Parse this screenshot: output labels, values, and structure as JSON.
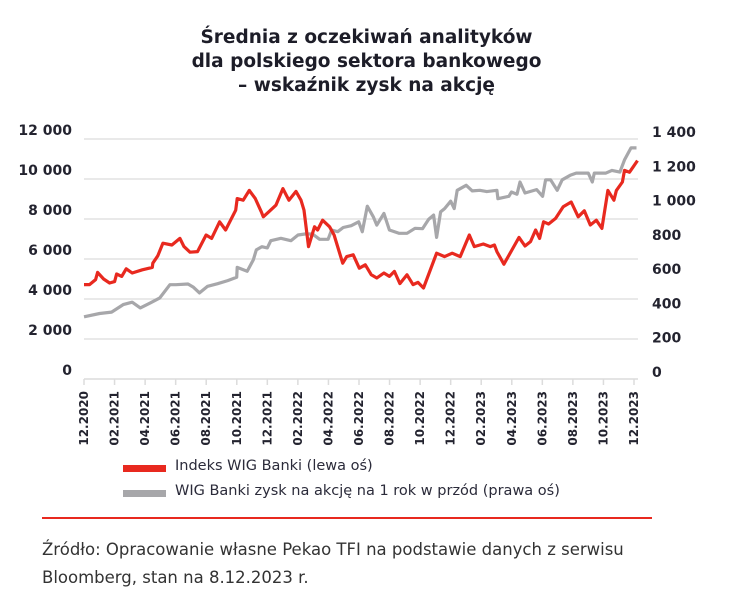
{
  "chart_data": {
    "type": "line",
    "title_lines": [
      "Średnia z oczekiwań analityków",
      "dla polskiego sektora bankowego",
      "– wskaźnik zysk na akcję"
    ],
    "x_tick_labels": [
      "12.2020",
      "02.2021",
      "04.2021",
      "06.2021",
      "08.2021",
      "10.2021",
      "12.2021",
      "02.2022",
      "04.2022",
      "06.2022",
      "08.2022",
      "10.2022",
      "12.2022",
      "02.2023",
      "04.2023",
      "06.2023",
      "08.2023",
      "10.2023",
      "12.2023"
    ],
    "x_range": [
      "2020-12-01",
      "2023-12-01"
    ],
    "y_left": {
      "range": [
        0,
        12000
      ],
      "ticks": [
        0,
        2000,
        4000,
        6000,
        8000,
        10000,
        12000
      ],
      "tick_labels": [
        "0",
        "2 000",
        "4 000",
        "6 000",
        "8 000",
        "10 000",
        "12 000"
      ]
    },
    "y_right": {
      "range": [
        0,
        1400
      ],
      "ticks": [
        0,
        200,
        400,
        600,
        800,
        1000,
        1200,
        1400
      ],
      "tick_labels": [
        "0",
        "200",
        "400",
        "600",
        "800",
        "1 000",
        "1 200",
        "1 400"
      ]
    },
    "grid": "horizontal",
    "legend_placement": "bottom-left",
    "series": [
      {
        "name": "Indeks WIG Banki (lewa oś)",
        "axis": "left",
        "color": "#e8291f",
        "points": [
          [
            "2020-12-01",
            4720
          ],
          [
            "2020-12-12",
            4720
          ],
          [
            "2020-12-24",
            4970
          ],
          [
            "2020-12-28",
            5330
          ],
          [
            "2021-01-09",
            5000
          ],
          [
            "2021-01-21",
            4800
          ],
          [
            "2021-01-31",
            4870
          ],
          [
            "2021-02-04",
            5250
          ],
          [
            "2021-02-14",
            5130
          ],
          [
            "2021-02-23",
            5510
          ],
          [
            "2021-03-07",
            5300
          ],
          [
            "2021-03-27",
            5460
          ],
          [
            "2021-04-16",
            5580
          ],
          [
            "2021-04-17",
            5790
          ],
          [
            "2021-04-27",
            6160
          ],
          [
            "2021-05-07",
            6790
          ],
          [
            "2021-05-25",
            6700
          ],
          [
            "2021-06-10",
            7030
          ],
          [
            "2021-06-18",
            6620
          ],
          [
            "2021-06-30",
            6340
          ],
          [
            "2021-07-15",
            6370
          ],
          [
            "2021-08-01",
            7200
          ],
          [
            "2021-08-12",
            7030
          ],
          [
            "2021-08-28",
            7860
          ],
          [
            "2021-09-09",
            7450
          ],
          [
            "2021-09-29",
            8440
          ],
          [
            "2021-10-02",
            9020
          ],
          [
            "2021-10-14",
            8940
          ],
          [
            "2021-10-26",
            9430
          ],
          [
            "2021-11-07",
            9020
          ],
          [
            "2021-11-19",
            8360
          ],
          [
            "2021-11-23",
            8110
          ],
          [
            "2021-12-04",
            8360
          ],
          [
            "2021-12-18",
            8690
          ],
          [
            "2022-01-01",
            9520
          ],
          [
            "2022-01-13",
            8940
          ],
          [
            "2022-01-27",
            9380
          ],
          [
            "2022-02-06",
            8940
          ],
          [
            "2022-02-12",
            8440
          ],
          [
            "2022-02-21",
            6620
          ],
          [
            "2022-03-05",
            7610
          ],
          [
            "2022-03-11",
            7450
          ],
          [
            "2022-03-21",
            7940
          ],
          [
            "2022-04-04",
            7610
          ],
          [
            "2022-04-13",
            7200
          ],
          [
            "2022-04-30",
            5790
          ],
          [
            "2022-05-08",
            6120
          ],
          [
            "2022-05-21",
            6210
          ],
          [
            "2022-06-02",
            5540
          ],
          [
            "2022-06-14",
            5710
          ],
          [
            "2022-06-26",
            5210
          ],
          [
            "2022-07-07",
            5050
          ],
          [
            "2022-07-21",
            5300
          ],
          [
            "2022-08-01",
            5130
          ],
          [
            "2022-08-11",
            5380
          ],
          [
            "2022-08-22",
            4770
          ],
          [
            "2022-09-05",
            5210
          ],
          [
            "2022-09-17",
            4720
          ],
          [
            "2022-09-27",
            4830
          ],
          [
            "2022-10-08",
            4550
          ],
          [
            "2022-11-03",
            6290
          ],
          [
            "2022-11-19",
            6120
          ],
          [
            "2022-12-04",
            6290
          ],
          [
            "2022-12-20",
            6120
          ],
          [
            "2023-01-07",
            7200
          ],
          [
            "2023-01-17",
            6620
          ],
          [
            "2023-02-04",
            6750
          ],
          [
            "2023-02-18",
            6620
          ],
          [
            "2023-02-26",
            6700
          ],
          [
            "2023-03-03",
            6370
          ],
          [
            "2023-03-17",
            5740
          ],
          [
            "2023-04-02",
            6450
          ],
          [
            "2023-04-16",
            7080
          ],
          [
            "2023-04-28",
            6650
          ],
          [
            "2023-05-09",
            6870
          ],
          [
            "2023-05-19",
            7450
          ],
          [
            "2023-05-27",
            7030
          ],
          [
            "2023-06-04",
            7860
          ],
          [
            "2023-06-14",
            7750
          ],
          [
            "2023-06-28",
            8030
          ],
          [
            "2023-07-13",
            8610
          ],
          [
            "2023-07-29",
            8850
          ],
          [
            "2023-08-12",
            8110
          ],
          [
            "2023-08-24",
            8410
          ],
          [
            "2023-09-05",
            7700
          ],
          [
            "2023-09-17",
            7940
          ],
          [
            "2023-09-28",
            7530
          ],
          [
            "2023-10-10",
            9430
          ],
          [
            "2023-10-22",
            8940
          ],
          [
            "2023-10-27",
            9430
          ],
          [
            "2023-11-08",
            9850
          ],
          [
            "2023-11-12",
            10430
          ],
          [
            "2023-11-22",
            10340
          ],
          [
            "2023-12-08",
            10920
          ]
        ]
      },
      {
        "name": "WIG Banki zysk na akcję na 1 rok w przód (prawa oś)",
        "axis": "right",
        "color": "#a7a7aa",
        "points": [
          [
            "2020-12-01",
            363
          ],
          [
            "2021-01-01",
            382
          ],
          [
            "2021-01-25",
            390
          ],
          [
            "2021-02-17",
            434
          ],
          [
            "2021-03-07",
            448
          ],
          [
            "2021-03-23",
            415
          ],
          [
            "2021-04-12",
            444
          ],
          [
            "2021-05-01",
            473
          ],
          [
            "2021-05-21",
            550
          ],
          [
            "2021-06-02",
            550
          ],
          [
            "2021-06-26",
            554
          ],
          [
            "2021-07-07",
            535
          ],
          [
            "2021-07-19",
            502
          ],
          [
            "2021-08-04",
            541
          ],
          [
            "2021-08-24",
            556
          ],
          [
            "2021-09-13",
            574
          ],
          [
            "2021-10-01",
            593
          ],
          [
            "2021-10-02",
            651
          ],
          [
            "2021-10-22",
            628
          ],
          [
            "2021-11-03",
            695
          ],
          [
            "2021-11-09",
            753
          ],
          [
            "2021-11-20",
            772
          ],
          [
            "2021-12-01",
            765
          ],
          [
            "2021-12-08",
            807
          ],
          [
            "2021-12-28",
            821
          ],
          [
            "2022-01-17",
            807
          ],
          [
            "2022-01-31",
            840
          ],
          [
            "2022-02-14",
            846
          ],
          [
            "2022-03-01",
            846
          ],
          [
            "2022-03-15",
            815
          ],
          [
            "2022-04-01",
            815
          ],
          [
            "2022-04-08",
            869
          ],
          [
            "2022-04-20",
            859
          ],
          [
            "2022-05-01",
            884
          ],
          [
            "2022-05-17",
            894
          ],
          [
            "2022-06-01",
            917
          ],
          [
            "2022-06-08",
            859
          ],
          [
            "2022-06-18",
            1008
          ],
          [
            "2022-06-30",
            946
          ],
          [
            "2022-07-07",
            898
          ],
          [
            "2022-07-21",
            966
          ],
          [
            "2022-08-01",
            869
          ],
          [
            "2022-08-20",
            850
          ],
          [
            "2022-09-05",
            850
          ],
          [
            "2022-09-21",
            879
          ],
          [
            "2022-10-06",
            877
          ],
          [
            "2022-10-18",
            931
          ],
          [
            "2022-10-28",
            956
          ],
          [
            "2022-11-03",
            826
          ],
          [
            "2022-11-11",
            975
          ],
          [
            "2022-11-19",
            994
          ],
          [
            "2022-12-01",
            1037
          ],
          [
            "2022-12-08",
            994
          ],
          [
            "2022-12-14",
            1101
          ],
          [
            "2023-01-01",
            1130
          ],
          [
            "2023-01-13",
            1097
          ],
          [
            "2023-01-28",
            1101
          ],
          [
            "2023-02-11",
            1093
          ],
          [
            "2023-03-03",
            1101
          ],
          [
            "2023-03-05",
            1052
          ],
          [
            "2023-03-27",
            1066
          ],
          [
            "2023-04-01",
            1091
          ],
          [
            "2023-04-12",
            1078
          ],
          [
            "2023-04-18",
            1149
          ],
          [
            "2023-04-28",
            1085
          ],
          [
            "2023-05-21",
            1105
          ],
          [
            "2023-06-02",
            1066
          ],
          [
            "2023-06-08",
            1162
          ],
          [
            "2023-06-18",
            1162
          ],
          [
            "2023-07-01",
            1101
          ],
          [
            "2023-07-11",
            1162
          ],
          [
            "2023-07-27",
            1188
          ],
          [
            "2023-08-08",
            1201
          ],
          [
            "2023-09-01",
            1201
          ],
          [
            "2023-09-09",
            1149
          ],
          [
            "2023-09-13",
            1201
          ],
          [
            "2023-10-06",
            1201
          ],
          [
            "2023-10-18",
            1217
          ],
          [
            "2023-11-03",
            1207
          ],
          [
            "2023-11-12",
            1278
          ],
          [
            "2023-11-25",
            1348
          ],
          [
            "2023-12-06",
            1348
          ]
        ]
      }
    ]
  },
  "legend": {
    "items": [
      "Indeks WIG Banki (lewa oś)",
      "WIG Banki zysk na akcję na 1 rok w przód (prawa oś)"
    ]
  },
  "source": {
    "lines": [
      "Źródło: Opracowanie własne Pekao TFI na podstawie danych z serwisu",
      "Bloomberg, stan na 8.12.2023 r."
    ]
  },
  "colors": {
    "accent": "#e8291f",
    "gray": "#a7a7aa",
    "grid": "#dcdcdc",
    "text": "#23232f"
  }
}
